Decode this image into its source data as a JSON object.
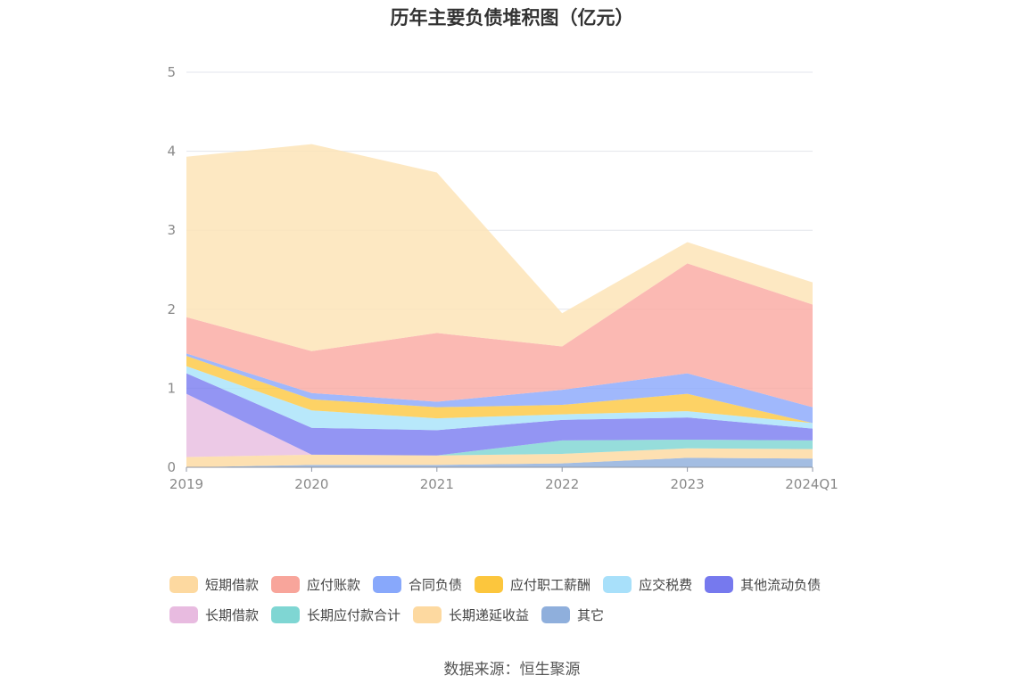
{
  "title": "历年主要负债堆积图（亿元）",
  "source": "数据来源：恒生聚源",
  "chart_data": {
    "type": "area",
    "stacked": true,
    "title": "历年主要负债堆积图（亿元）",
    "x": [
      "2019",
      "2020",
      "2021",
      "2022",
      "2023",
      "2024Q1"
    ],
    "y_ticks": [
      "0",
      "1",
      "2",
      "3",
      "4",
      "5"
    ],
    "ylim": [
      0,
      5
    ],
    "grid": true,
    "legend_position": "bottom",
    "series": [
      {
        "name": "其它",
        "color": "#8fafdc",
        "values": [
          0.0,
          0.03,
          0.03,
          0.05,
          0.12,
          0.11
        ]
      },
      {
        "name": "长期递延收益",
        "color": "#fdd9a0",
        "values": [
          0.13,
          0.13,
          0.12,
          0.12,
          0.12,
          0.12
        ]
      },
      {
        "name": "长期应付款合计",
        "color": "#7fd6d3",
        "values": [
          0.0,
          0.0,
          0.0,
          0.17,
          0.11,
          0.11
        ]
      },
      {
        "name": "长期借款",
        "color": "#e8bde0",
        "values": [
          0.8,
          0.0,
          0.0,
          0.0,
          0.0,
          0.0
        ]
      },
      {
        "name": "其他流动负债",
        "color": "#7b7ef0",
        "values": [
          0.26,
          0.34,
          0.32,
          0.26,
          0.28,
          0.15
        ]
      },
      {
        "name": "应交税费",
        "color": "#a8e3fa",
        "values": [
          0.09,
          0.22,
          0.15,
          0.07,
          0.08,
          0.07
        ]
      },
      {
        "name": "应付职工薪酬",
        "color": "#fcc843",
        "values": [
          0.13,
          0.14,
          0.14,
          0.12,
          0.22,
          0.0
        ]
      },
      {
        "name": "合同负债",
        "color": "#8ba8fb",
        "values": [
          0.03,
          0.08,
          0.07,
          0.19,
          0.26,
          0.2
        ]
      },
      {
        "name": "应付账款",
        "color": "#faa9a2",
        "values": [
          0.46,
          0.53,
          0.87,
          0.55,
          1.39,
          1.3
        ]
      },
      {
        "name": "短期借款",
        "color": "#fde3b4",
        "values": [
          2.03,
          2.62,
          2.03,
          0.42,
          0.27,
          0.28
        ]
      }
    ]
  },
  "legend": [
    {
      "label": "短期借款",
      "color": "#fdd9a0"
    },
    {
      "label": "应付账款",
      "color": "#f8a59b"
    },
    {
      "label": "合同负债",
      "color": "#88a8fb"
    },
    {
      "label": "应付职工薪酬",
      "color": "#fcc63d"
    },
    {
      "label": "应交税费",
      "color": "#a8e0fa"
    },
    {
      "label": "其他流动负债",
      "color": "#7679ee"
    },
    {
      "label": "长期借款",
      "color": "#e8bbe0"
    },
    {
      "label": "长期应付款合计",
      "color": "#7fd6d3"
    },
    {
      "label": "长期递延收益",
      "color": "#fdd9a0"
    },
    {
      "label": "其它",
      "color": "#8fafdc"
    }
  ]
}
